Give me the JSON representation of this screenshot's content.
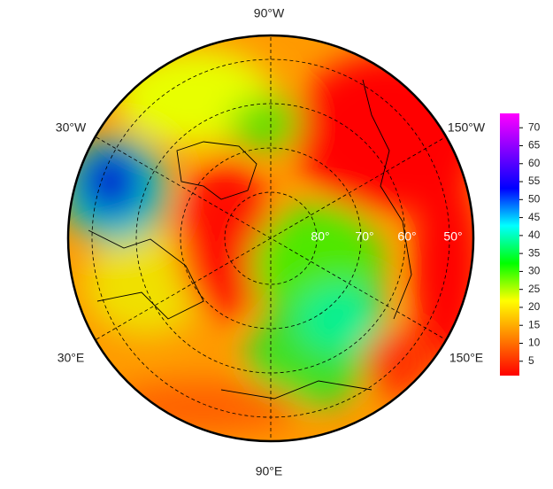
{
  "map": {
    "longitude_labels": [
      "90°W",
      "30°W",
      "150°W",
      "30°E",
      "150°E",
      "90°E"
    ],
    "latitude_labels": [
      "80°",
      "70°",
      "60°",
      "50°"
    ]
  },
  "colorbar": {
    "lim": [
      1,
      74
    ],
    "ticks": [
      5,
      10,
      15,
      20,
      25,
      30,
      35,
      40,
      45,
      50,
      55,
      60,
      65,
      70
    ],
    "colors": [
      "#ff0000",
      "#ff8000",
      "#ffff00",
      "#00ff00",
      "#00ffff",
      "#0000ff",
      "#8000ff",
      "#ff00ff"
    ]
  }
}
